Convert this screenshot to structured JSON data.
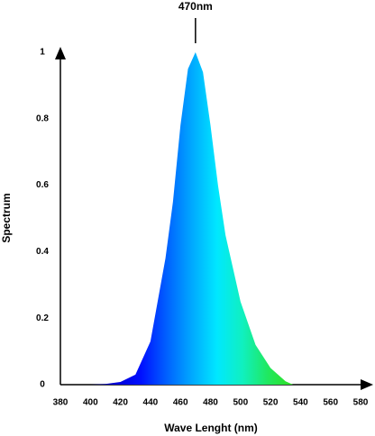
{
  "chart_data": {
    "type": "area",
    "annotation": {
      "text": "470nm",
      "x": 470
    },
    "xlabel": "Wave Lenght (nm)",
    "ylabel": "Spectrum",
    "x": [
      400,
      410,
      420,
      430,
      440,
      450,
      455,
      460,
      465,
      470,
      475,
      480,
      485,
      490,
      500,
      510,
      520,
      530,
      535
    ],
    "series": [
      {
        "values": [
          0,
          0.002,
          0.008,
          0.03,
          0.13,
          0.38,
          0.55,
          0.78,
          0.95,
          1,
          0.94,
          0.78,
          0.6,
          0.45,
          0.25,
          0.12,
          0.05,
          0.01,
          0
        ],
        "colors": [
          "#000080",
          "#0000d8",
          "#0010ff",
          "#0060ff",
          "#00a8ff",
          "#00e8ff",
          "#10f0c0",
          "#20e860",
          "#30e020"
        ]
      }
    ],
    "xlim": [
      380,
      580
    ],
    "ylim": [
      0,
      1
    ],
    "xticks": [
      380,
      400,
      420,
      440,
      460,
      480,
      500,
      520,
      540,
      560,
      580
    ],
    "yticks": [
      0,
      0.2,
      0.4,
      0.6,
      0.8,
      1
    ]
  }
}
